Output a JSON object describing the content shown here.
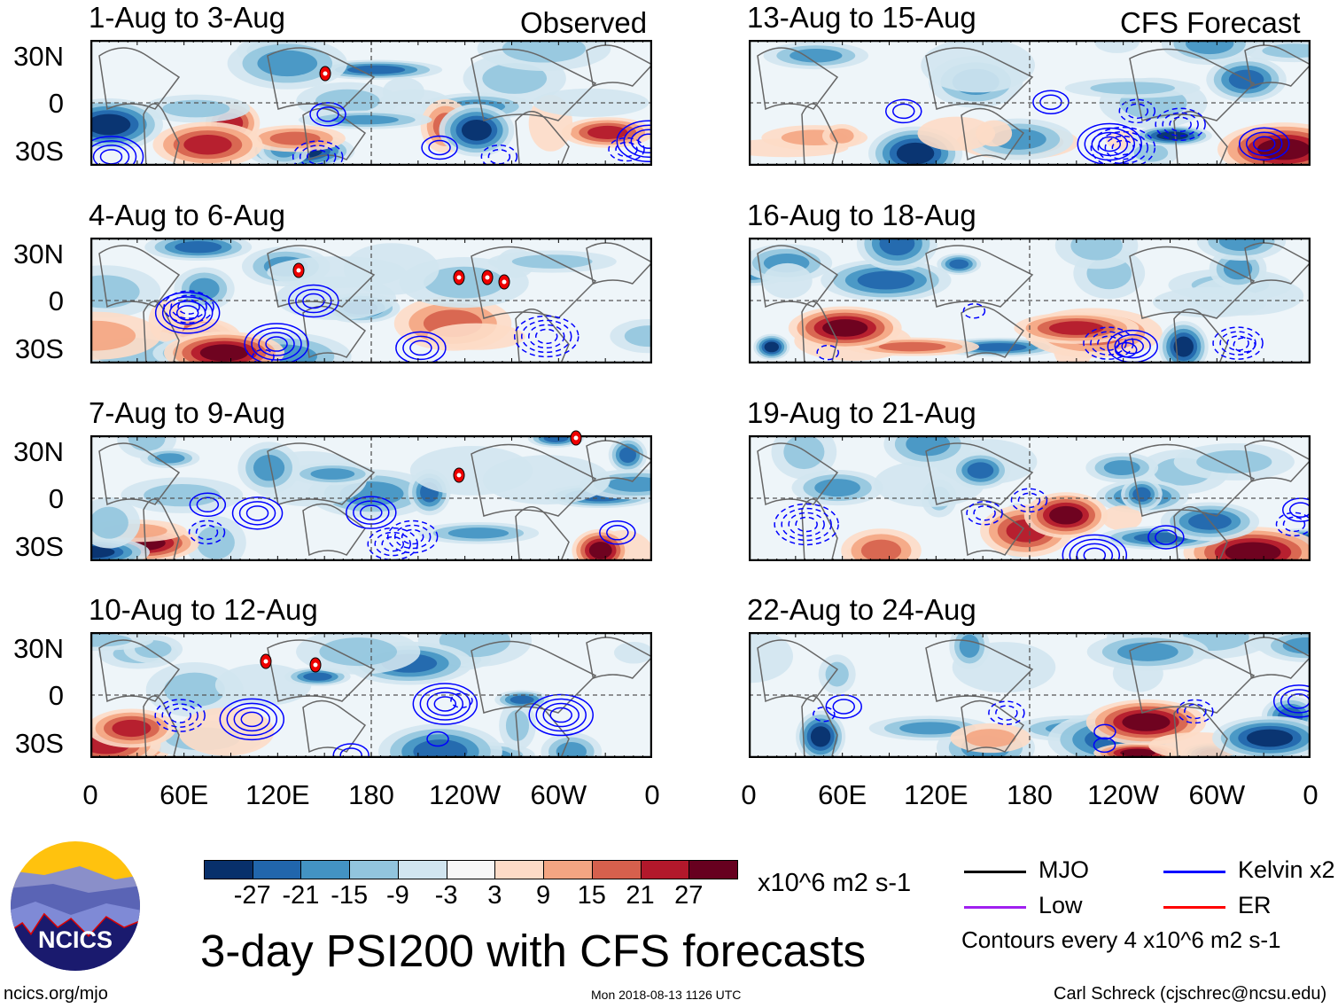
{
  "left_header": "Observed",
  "right_header": "CFS Forecast",
  "panels_left": [
    "1-Aug to 3-Aug",
    "4-Aug to 6-Aug",
    "7-Aug to 9-Aug",
    "10-Aug to 12-Aug"
  ],
  "panels_right": [
    "13-Aug to 15-Aug",
    "16-Aug to 18-Aug",
    "19-Aug to 21-Aug",
    "22-Aug to 24-Aug"
  ],
  "lat_labels": [
    "30N",
    "0",
    "30S"
  ],
  "lon_labels": [
    "0",
    "60E",
    "120E",
    "180",
    "120W",
    "60W",
    "0"
  ],
  "colorbar": {
    "colors": [
      "#08306b",
      "#2166ac",
      "#4393c3",
      "#92c5de",
      "#d1e5f0",
      "#f7f7f7",
      "#fddbc7",
      "#f4a582",
      "#d6604d",
      "#b2182b",
      "#67001f"
    ],
    "labels": [
      "-27",
      "-21",
      "-15",
      "-9",
      "-3",
      "3",
      "9",
      "15",
      "21",
      "27"
    ],
    "units": "x10^6 m2 s-1"
  },
  "title": "3-day PSI200 with CFS forecasts",
  "legend": [
    {
      "label": "MJO",
      "color": "#000000"
    },
    {
      "label": "Kelvin x2",
      "color": "#0000ff"
    },
    {
      "label": "Low",
      "color": "#a020f0"
    },
    {
      "label": "ER",
      "color": "#ff0000"
    }
  ],
  "contour_note": "Contours every 4 x10^6 m2 s-1",
  "logo_text": "NCICS",
  "footer": {
    "left": "ncics.org/mjo",
    "center": "Mon 2018-08-13 1126 UTC",
    "right": "Carl Schreck (cjschrec@ncsu.edu)"
  }
}
